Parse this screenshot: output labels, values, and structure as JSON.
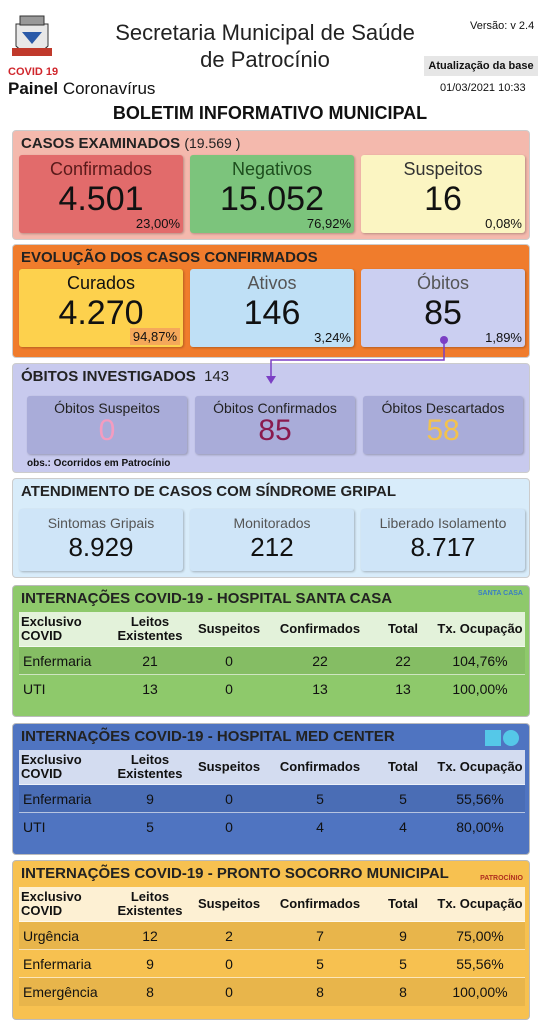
{
  "header": {
    "title_line1": "Secretaria Municipal de Saúde",
    "title_line2": "de Patrocínio",
    "version": "Versão: v 2.4",
    "update_label": "Atualização da base",
    "update_date": "01/03/2021 10:33",
    "logo_caption": "COVID 19",
    "panel_bold": "Painel",
    "panel_rest": "Coronavírus"
  },
  "title": "BOLETIM INFORMATIVO MUNICIPAL",
  "cases": {
    "title": "CASOS EXAMINADOS",
    "total": "(19.569  )",
    "cards": [
      {
        "label": "Confirmados",
        "value": "4.501",
        "percent": "23,00%"
      },
      {
        "label": "Negativos",
        "value": "15.052",
        "percent": "76,92%"
      },
      {
        "label": "Suspeitos",
        "value": "16",
        "percent": "0,08%"
      }
    ]
  },
  "evolution": {
    "title": "EVOLUÇÃO DOS CASOS CONFIRMADOS",
    "cards": [
      {
        "label": "Curados",
        "value": "4.270",
        "percent": "94,87%"
      },
      {
        "label": "Ativos",
        "value": "146",
        "percent": "3,24%"
      },
      {
        "label": "Óbitos",
        "value": "85",
        "percent": "1,89%"
      }
    ]
  },
  "deaths": {
    "title": "ÓBITOS INVESTIGADOS",
    "total": "143",
    "note": "obs.: Ocorridos em Patrocínio",
    "cards": [
      {
        "label": "Óbitos Suspeitos",
        "value": "0"
      },
      {
        "label": "Óbitos Confirmados",
        "value": "85"
      },
      {
        "label": "Óbitos Descartados",
        "value": "58"
      }
    ]
  },
  "flu": {
    "title": "ATENDIMENTO DE CASOS COM SÍNDROME GRIPAL",
    "cards": [
      {
        "label": "Sintomas Gripais",
        "value": "8.929"
      },
      {
        "label": "Monitorados",
        "value": "212"
      },
      {
        "label": "Liberado Isolamento",
        "value": "8.717"
      }
    ]
  },
  "hospitals": [
    {
      "title": "INTERNAÇÕES COVID-19 - HOSPITAL SANTA CASA",
      "logo_text": "SANTA CASA",
      "header": [
        "Exclusivo COVID",
        "Leitos Existentes",
        "Suspeitos",
        "Confirmados",
        "Total",
        "Tx. Ocupação"
      ],
      "rows": [
        [
          "Enfermaria",
          "21",
          "0",
          "22",
          "22",
          "104,76%"
        ],
        [
          "UTI",
          "13",
          "0",
          "13",
          "13",
          "100,00%"
        ]
      ]
    },
    {
      "title": "INTERNAÇÕES COVID-19 - HOSPITAL MED CENTER",
      "header": [
        "Exclusivo COVID",
        "Leitos Existentes",
        "Suspeitos",
        "Confirmados",
        "Total",
        "Tx. Ocupação"
      ],
      "rows": [
        [
          "Enfermaria",
          "9",
          "0",
          "5",
          "5",
          "55,56%"
        ],
        [
          "UTI",
          "5",
          "0",
          "4",
          "4",
          "80,00%"
        ]
      ]
    },
    {
      "title": "INTERNAÇÕES COVID-19 - PRONTO SOCORRO MUNICIPAL",
      "logo_text": "PATROCÍNIO",
      "header": [
        "Exclusivo COVID",
        "Leitos Existentes",
        "Suspeitos",
        "Confirmados",
        "Total",
        "Tx. Ocupação"
      ],
      "rows": [
        [
          "Urgência",
          "12",
          "2",
          "7",
          "9",
          "75,00%"
        ],
        [
          "Enfermaria",
          "9",
          "0",
          "5",
          "5",
          "55,56%"
        ],
        [
          "Emergência",
          "8",
          "0",
          "8",
          "8",
          "100,00%"
        ]
      ]
    }
  ]
}
